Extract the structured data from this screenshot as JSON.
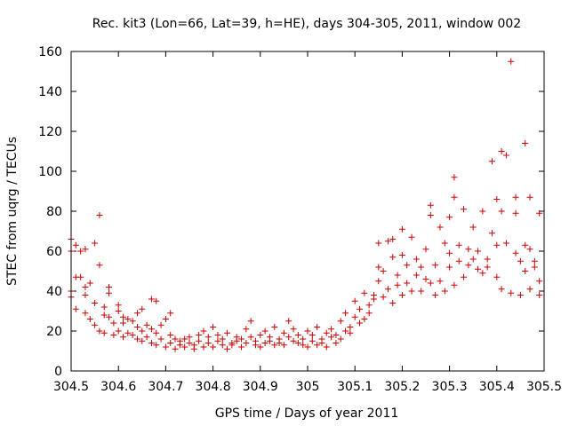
{
  "chart_data": {
    "type": "scatter",
    "title": "Rec. kit3 (Lon=66, Lat=39, h=HE), days 304-305, 2011, window 002",
    "xlabel": "GPS time / Days of year 2011",
    "ylabel": "STEC from uqrg / TECUs",
    "xlim": [
      304.5,
      305.5
    ],
    "ylim": [
      0,
      160
    ],
    "x_ticks": [
      "304.5",
      "304.6",
      "304.7",
      "304.8",
      "304.9",
      "305",
      "305.1",
      "305.2",
      "305.3",
      "305.4",
      "305.5"
    ],
    "y_ticks": [
      "0",
      "20",
      "40",
      "60",
      "80",
      "100",
      "120",
      "140",
      "160"
    ],
    "grid": false,
    "legend": "none",
    "marker": "+",
    "color": "#cc0000",
    "series": [
      {
        "name": "STEC",
        "points": [
          [
            304.5,
            66
          ],
          [
            304.5,
            60
          ],
          [
            304.51,
            63
          ],
          [
            304.5,
            40
          ],
          [
            304.5,
            37
          ],
          [
            304.51,
            31
          ],
          [
            304.51,
            47
          ],
          [
            304.52,
            47
          ],
          [
            304.52,
            60
          ],
          [
            304.53,
            61
          ],
          [
            304.53,
            42
          ],
          [
            304.53,
            38
          ],
          [
            304.53,
            29
          ],
          [
            304.54,
            26
          ],
          [
            304.54,
            44
          ],
          [
            304.55,
            64
          ],
          [
            304.55,
            34
          ],
          [
            304.55,
            23
          ],
          [
            304.56,
            20
          ],
          [
            304.56,
            78
          ],
          [
            304.56,
            53
          ],
          [
            304.57,
            28
          ],
          [
            304.57,
            32
          ],
          [
            304.57,
            19
          ],
          [
            304.58,
            42
          ],
          [
            304.58,
            39
          ],
          [
            304.58,
            27
          ],
          [
            304.59,
            18
          ],
          [
            304.59,
            24
          ],
          [
            304.6,
            30
          ],
          [
            304.6,
            33
          ],
          [
            304.6,
            20
          ],
          [
            304.61,
            17
          ],
          [
            304.61,
            27
          ],
          [
            304.61,
            24
          ],
          [
            304.62,
            19
          ],
          [
            304.62,
            26
          ],
          [
            304.63,
            25
          ],
          [
            304.63,
            18
          ],
          [
            304.64,
            16
          ],
          [
            304.64,
            29
          ],
          [
            304.64,
            22
          ],
          [
            304.65,
            15
          ],
          [
            304.65,
            20
          ],
          [
            304.65,
            31
          ],
          [
            304.66,
            23
          ],
          [
            304.66,
            17
          ],
          [
            304.67,
            36
          ],
          [
            304.67,
            21
          ],
          [
            304.67,
            14
          ],
          [
            304.68,
            35
          ],
          [
            304.68,
            19
          ],
          [
            304.68,
            13
          ],
          [
            304.69,
            23
          ],
          [
            304.69,
            16
          ],
          [
            304.7,
            12
          ],
          [
            304.7,
            26
          ],
          [
            304.71,
            18
          ],
          [
            304.71,
            29
          ],
          [
            304.71,
            14
          ],
          [
            304.72,
            11
          ],
          [
            304.72,
            16
          ],
          [
            304.73,
            13
          ],
          [
            304.73,
            15
          ],
          [
            304.74,
            12
          ],
          [
            304.74,
            16
          ],
          [
            304.75,
            14
          ],
          [
            304.75,
            17
          ],
          [
            304.76,
            11
          ],
          [
            304.76,
            13
          ],
          [
            304.77,
            18
          ],
          [
            304.77,
            15
          ],
          [
            304.78,
            12
          ],
          [
            304.78,
            20
          ],
          [
            304.79,
            14
          ],
          [
            304.79,
            17
          ],
          [
            304.8,
            12
          ],
          [
            304.8,
            22
          ],
          [
            304.81,
            15
          ],
          [
            304.81,
            18
          ],
          [
            304.82,
            13
          ],
          [
            304.82,
            16
          ],
          [
            304.83,
            11
          ],
          [
            304.83,
            19
          ],
          [
            304.84,
            14
          ],
          [
            304.84,
            13
          ],
          [
            304.85,
            17
          ],
          [
            304.85,
            15
          ],
          [
            304.86,
            12
          ],
          [
            304.86,
            16
          ],
          [
            304.87,
            21
          ],
          [
            304.87,
            14
          ],
          [
            304.88,
            17
          ],
          [
            304.88,
            25
          ],
          [
            304.89,
            15
          ],
          [
            304.89,
            13
          ],
          [
            304.9,
            18
          ],
          [
            304.9,
            12
          ],
          [
            304.91,
            14
          ],
          [
            304.91,
            20
          ],
          [
            304.92,
            15
          ],
          [
            304.92,
            17
          ],
          [
            304.93,
            13
          ],
          [
            304.93,
            22
          ],
          [
            304.94,
            16
          ],
          [
            304.94,
            14
          ],
          [
            304.95,
            19
          ],
          [
            304.95,
            13
          ],
          [
            304.96,
            25
          ],
          [
            304.96,
            17
          ],
          [
            304.97,
            15
          ],
          [
            304.97,
            21
          ],
          [
            304.98,
            14
          ],
          [
            304.98,
            18
          ],
          [
            304.99,
            16
          ],
          [
            304.99,
            13
          ],
          [
            305.0,
            20
          ],
          [
            305.0,
            12
          ],
          [
            305.01,
            15
          ],
          [
            305.01,
            18
          ],
          [
            305.02,
            13
          ],
          [
            305.02,
            22
          ],
          [
            305.03,
            16
          ],
          [
            305.03,
            14
          ],
          [
            305.04,
            19
          ],
          [
            305.04,
            12
          ],
          [
            305.05,
            17
          ],
          [
            305.05,
            21
          ],
          [
            305.06,
            14
          ],
          [
            305.06,
            18
          ],
          [
            305.07,
            25
          ],
          [
            305.07,
            16
          ],
          [
            305.08,
            20
          ],
          [
            305.08,
            29
          ],
          [
            305.09,
            22
          ],
          [
            305.09,
            19
          ],
          [
            305.1,
            27
          ],
          [
            305.1,
            35
          ],
          [
            305.11,
            31
          ],
          [
            305.11,
            24
          ],
          [
            305.12,
            39
          ],
          [
            305.12,
            26
          ],
          [
            305.13,
            33
          ],
          [
            305.13,
            29
          ],
          [
            305.14,
            38
          ],
          [
            305.14,
            36
          ],
          [
            305.15,
            52
          ],
          [
            305.15,
            45
          ],
          [
            305.15,
            64
          ],
          [
            305.16,
            50
          ],
          [
            305.16,
            37
          ],
          [
            305.17,
            65
          ],
          [
            305.17,
            41
          ],
          [
            305.18,
            57
          ],
          [
            305.18,
            34
          ],
          [
            305.18,
            66
          ],
          [
            305.19,
            43
          ],
          [
            305.19,
            48
          ],
          [
            305.2,
            71
          ],
          [
            305.2,
            58
          ],
          [
            305.2,
            38
          ],
          [
            305.21,
            53
          ],
          [
            305.21,
            44
          ],
          [
            305.22,
            67
          ],
          [
            305.22,
            40
          ],
          [
            305.23,
            56
          ],
          [
            305.23,
            48
          ],
          [
            305.24,
            52
          ],
          [
            305.24,
            40
          ],
          [
            305.25,
            46
          ],
          [
            305.25,
            61
          ],
          [
            305.26,
            83
          ],
          [
            305.26,
            44
          ],
          [
            305.26,
            78
          ],
          [
            305.27,
            53
          ],
          [
            305.27,
            38
          ],
          [
            305.28,
            72
          ],
          [
            305.28,
            45
          ],
          [
            305.29,
            64
          ],
          [
            305.29,
            40
          ],
          [
            305.3,
            59
          ],
          [
            305.3,
            52
          ],
          [
            305.3,
            77
          ],
          [
            305.31,
            97
          ],
          [
            305.31,
            87
          ],
          [
            305.31,
            43
          ],
          [
            305.32,
            63
          ],
          [
            305.32,
            55
          ],
          [
            305.33,
            81
          ],
          [
            305.33,
            47
          ],
          [
            305.34,
            61
          ],
          [
            305.34,
            53
          ],
          [
            305.35,
            72
          ],
          [
            305.35,
            56
          ],
          [
            305.36,
            51
          ],
          [
            305.36,
            60
          ],
          [
            305.37,
            80
          ],
          [
            305.37,
            49
          ],
          [
            305.38,
            56
          ],
          [
            305.38,
            52
          ],
          [
            305.39,
            105
          ],
          [
            305.39,
            69
          ],
          [
            305.4,
            86
          ],
          [
            305.4,
            63
          ],
          [
            305.4,
            47
          ],
          [
            305.41,
            110
          ],
          [
            305.41,
            80
          ],
          [
            305.41,
            41
          ],
          [
            305.42,
            108
          ],
          [
            305.42,
            64
          ],
          [
            305.43,
            155
          ],
          [
            305.43,
            39
          ],
          [
            305.44,
            87
          ],
          [
            305.44,
            59
          ],
          [
            305.44,
            79
          ],
          [
            305.45,
            55
          ],
          [
            305.45,
            38
          ],
          [
            305.46,
            114
          ],
          [
            305.46,
            63
          ],
          [
            305.46,
            50
          ],
          [
            305.47,
            87
          ],
          [
            305.47,
            61
          ],
          [
            305.47,
            41
          ],
          [
            305.48,
            55
          ],
          [
            305.48,
            52
          ],
          [
            305.49,
            79
          ],
          [
            305.49,
            45
          ],
          [
            305.49,
            38
          ]
        ]
      }
    ]
  }
}
